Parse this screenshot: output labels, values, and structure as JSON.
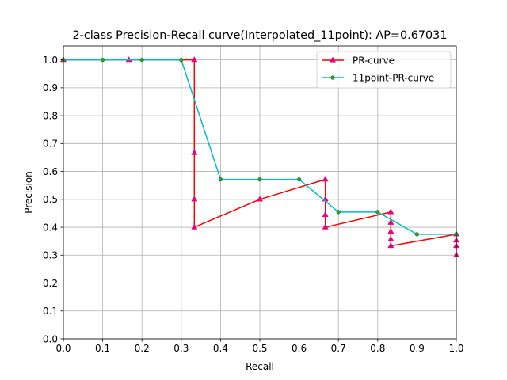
{
  "chart_data": {
    "type": "line",
    "title": "2-class Precision-Recall curve(Interpolated_11point): AP=0.67031",
    "xlabel": "Recall",
    "ylabel": "Precision",
    "xlim": [
      0.0,
      1.0
    ],
    "ylim": [
      0.0,
      1.05
    ],
    "grid": true,
    "legend_position": "top-right",
    "x_ticks": [
      0.0,
      0.1,
      0.2,
      0.3,
      0.4,
      0.5,
      0.6,
      0.7,
      0.8,
      0.9,
      1.0
    ],
    "x_tick_labels": [
      "0.0",
      "0.1",
      "0.2",
      "0.3",
      "0.4",
      "0.5",
      "0.6",
      "0.7",
      "0.8",
      "0.9",
      "1.0"
    ],
    "y_ticks": [
      0.0,
      0.1,
      0.2,
      0.3,
      0.4,
      0.5,
      0.6,
      0.7,
      0.8,
      0.9,
      1.0
    ],
    "y_tick_labels": [
      "0.0",
      "0.1",
      "0.2",
      "0.3",
      "0.4",
      "0.5",
      "0.6",
      "0.7",
      "0.8",
      "0.9",
      "1.0"
    ],
    "series": [
      {
        "name": "PR-curve",
        "color": "#ff0000",
        "marker": "triangle",
        "marker_color": "#e6007e",
        "x": [
          0.0,
          0.1667,
          0.3333,
          0.3333,
          0.3333,
          0.3333,
          0.5,
          0.6667,
          0.6667,
          0.6667,
          0.6667,
          0.8333,
          0.8333,
          0.8333,
          0.8333,
          0.8333,
          1.0,
          1.0,
          1.0,
          1.0
        ],
        "y": [
          1.0,
          1.0,
          1.0,
          0.6667,
          0.5,
          0.4,
          0.5,
          0.5714,
          0.5,
          0.4444,
          0.4,
          0.4545,
          0.4167,
          0.3846,
          0.3571,
          0.3333,
          0.375,
          0.3529,
          0.3333,
          0.3
        ]
      },
      {
        "name": "11point-PR-curve",
        "color": "#00bfbf",
        "marker": "circle",
        "marker_color": "#2ca02c",
        "x": [
          0.0,
          0.1,
          0.2,
          0.3,
          0.4,
          0.5,
          0.6,
          0.7,
          0.8,
          0.9,
          1.0
        ],
        "y": [
          1.0,
          1.0,
          1.0,
          1.0,
          0.5714,
          0.5714,
          0.5714,
          0.4545,
          0.4545,
          0.375,
          0.375
        ]
      }
    ]
  }
}
